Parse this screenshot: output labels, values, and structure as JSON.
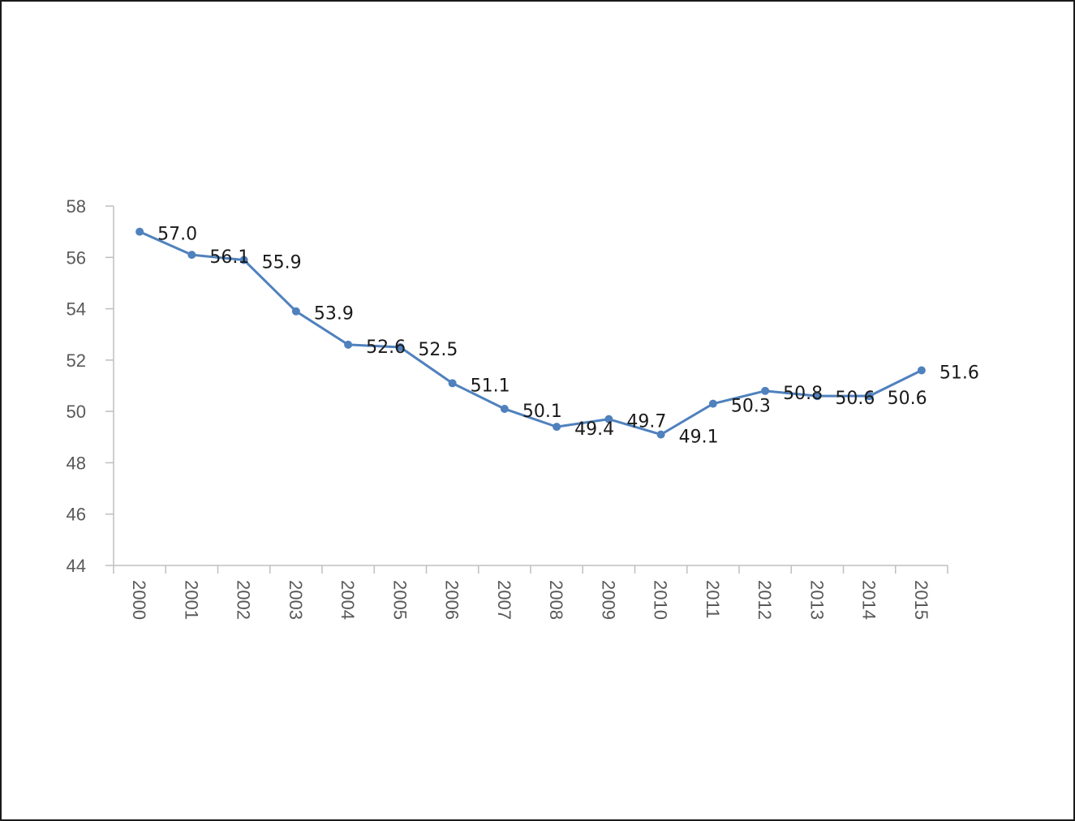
{
  "chart_data": {
    "type": "line",
    "title": "",
    "xlabel": "",
    "ylabel": "",
    "categories": [
      "2000",
      "2001",
      "2002",
      "2003",
      "2004",
      "2005",
      "2006",
      "2007",
      "2008",
      "2009",
      "2010",
      "2011",
      "2012",
      "2013",
      "2014",
      "2015"
    ],
    "series": [
      {
        "values": [
          57.0,
          56.1,
          55.9,
          53.9,
          52.6,
          52.5,
          51.1,
          50.1,
          49.4,
          49.7,
          49.1,
          50.3,
          50.8,
          50.6,
          50.6,
          51.6
        ],
        "labels": [
          "57.0",
          "56.1",
          "55.9",
          "53.9",
          "52.6",
          "52.5",
          "51.1",
          "50.1",
          "49.4",
          "49.7",
          "49.1",
          "50.3",
          "50.8",
          "50.6",
          "50.6",
          "51.6"
        ],
        "color": "#4f81bd"
      }
    ],
    "ylim": [
      44,
      58
    ],
    "yticks": [
      "44",
      "46",
      "48",
      "50",
      "52",
      "54",
      "56",
      "58"
    ],
    "grid": false,
    "legend": "none",
    "marker": "circle",
    "x_tick_rotation": "vertical"
  }
}
